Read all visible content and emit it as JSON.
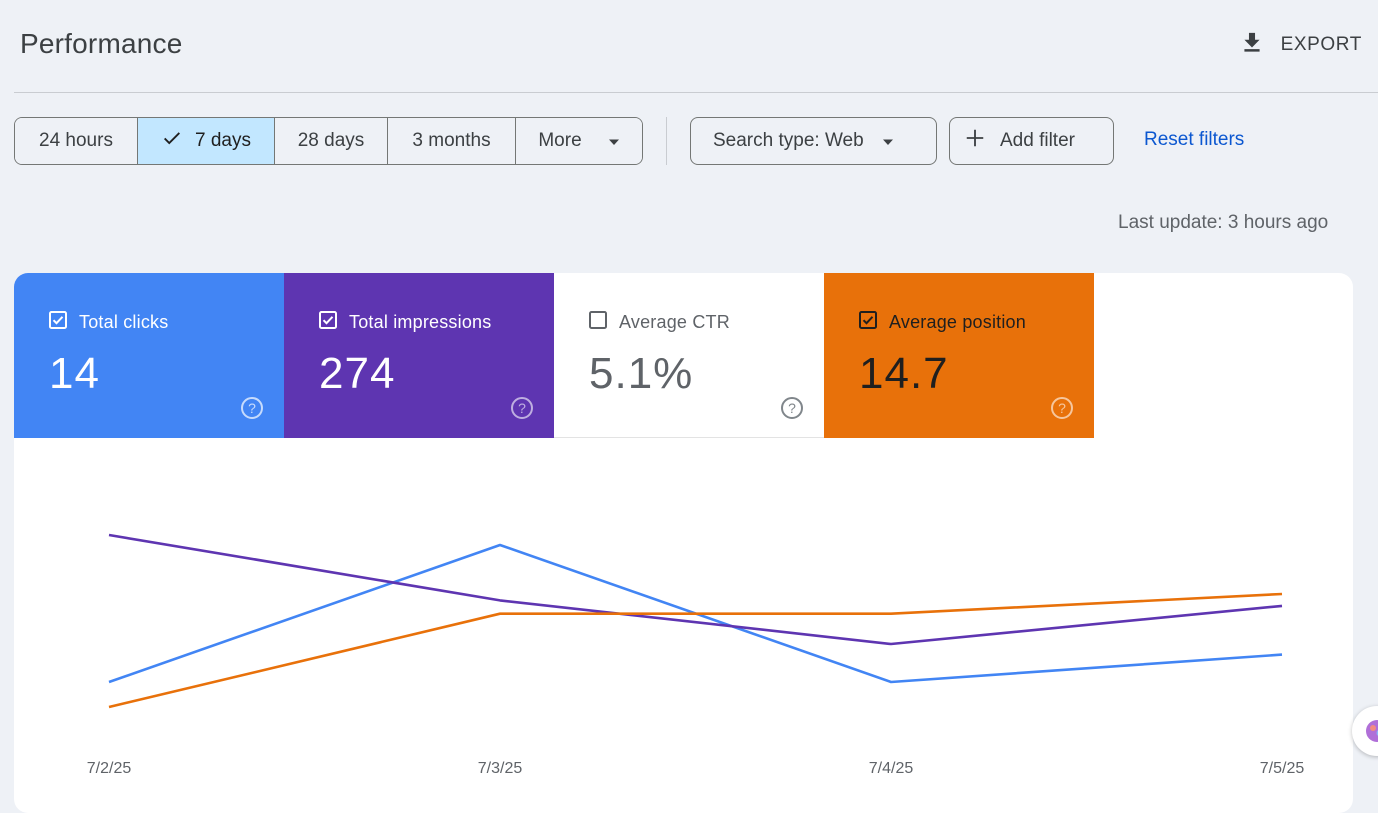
{
  "header": {
    "title": "Performance",
    "export_label": "EXPORT"
  },
  "filters": {
    "ranges": [
      "24 hours",
      "7 days",
      "28 days",
      "3 months",
      "More"
    ],
    "selected_range": "7 days",
    "search_type": "Search type: Web",
    "add_filter": "Add filter",
    "reset": "Reset filters"
  },
  "last_update": "Last update: 3 hours ago",
  "metrics": {
    "clicks": {
      "label": "Total clicks",
      "value": "14",
      "checked": true,
      "color": "#4285f4"
    },
    "impressions": {
      "label": "Total impressions",
      "value": "274",
      "checked": true,
      "color": "#5e35b1"
    },
    "ctr": {
      "label": "Average CTR",
      "value": "5.1%",
      "checked": false,
      "color": "#ffffff"
    },
    "position": {
      "label": "Average position",
      "value": "14.7",
      "checked": true,
      "color": "#e8710a"
    }
  },
  "chart_data": {
    "type": "line",
    "x": [
      "7/2/25",
      "7/3/25",
      "7/4/25",
      "7/5/25"
    ],
    "series": [
      {
        "name": "Total clicks",
        "color": "#4285f4",
        "values": [
          2,
          5,
          2,
          2.6
        ]
      },
      {
        "name": "Total impressions",
        "color": "#5e35b1",
        "values": [
          48,
          36,
          28,
          35
        ]
      },
      {
        "name": "Average position",
        "color": "#e8710a",
        "values": [
          21.5,
          16.3,
          16.3,
          15.2
        ]
      }
    ],
    "grid": false,
    "axes_labels_visible": false
  }
}
